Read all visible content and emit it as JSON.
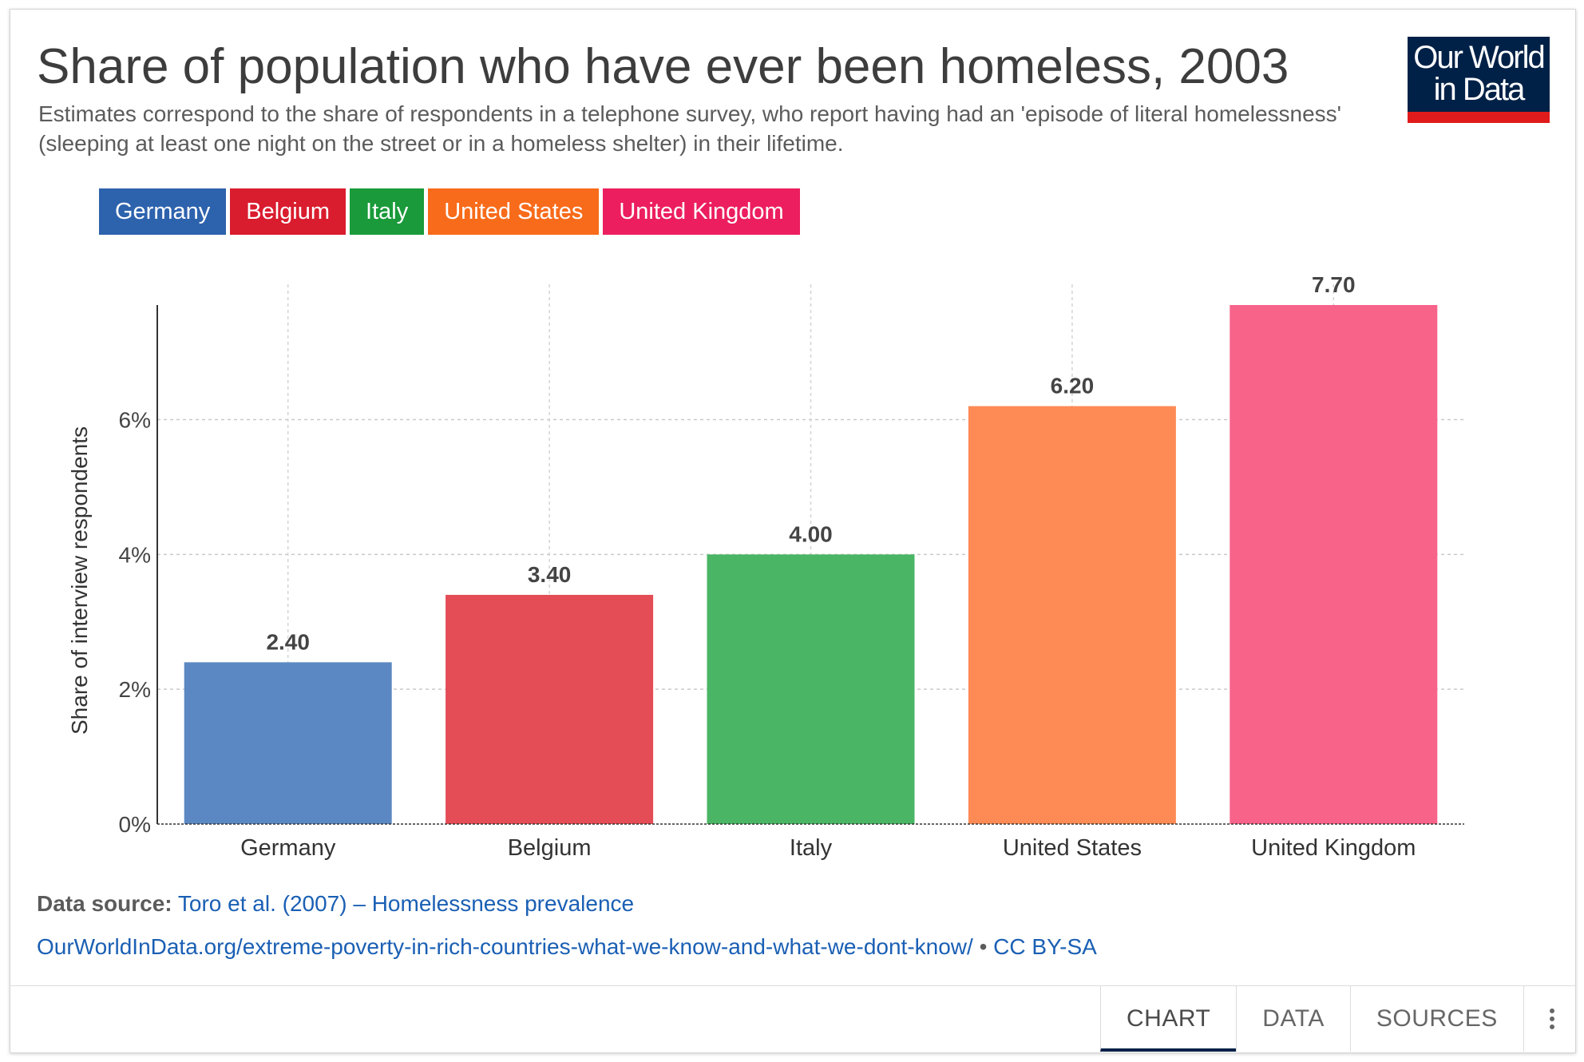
{
  "header": {
    "title": "Share of population who have ever been homeless, 2003",
    "subtitle": "Estimates correspond to the share of respondents in a telephone survey, who report having had an 'episode of literal homelessness' (sleeping at least one night on the street or in a homeless shelter) in their lifetime."
  },
  "logo": {
    "line1": "Our World",
    "line2": "in Data",
    "navy": "#002147",
    "red": "#e01b1b"
  },
  "legend": [
    {
      "label": "Germany",
      "color": "#2d62ad"
    },
    {
      "label": "Belgium",
      "color": "#d91c2e"
    },
    {
      "label": "Italy",
      "color": "#1a9a3a"
    },
    {
      "label": "United States",
      "color": "#f86b1a"
    },
    {
      "label": "United Kingdom",
      "color": "#ec1e5f"
    }
  ],
  "chart_data": {
    "type": "bar",
    "categories": [
      "Germany",
      "Belgium",
      "Italy",
      "United States",
      "United Kingdom"
    ],
    "values": [
      2.4,
      3.4,
      4.0,
      6.2,
      7.7
    ],
    "value_labels": [
      "2.40",
      "3.40",
      "4.00",
      "6.20",
      "7.70"
    ],
    "bar_colors": [
      "#5b88c2",
      "#e44c56",
      "#4ab564",
      "#fe8b55",
      "#f8638a"
    ],
    "ylabel": "Share of interview respondents",
    "yticks": [
      0,
      2,
      4,
      6
    ],
    "ytick_labels": [
      "0%",
      "2%",
      "4%",
      "6%"
    ],
    "ylim": [
      0,
      7.7
    ],
    "grid": "dashed"
  },
  "footer": {
    "source_label": "Data source:",
    "source_text": "Toro et al. (2007) – Homelessness prevalence",
    "url": "OurWorldInData.org/extreme-poverty-in-rich-countries-what-we-know-and-what-we-dont-know/",
    "separator": " • ",
    "license": "CC BY-SA"
  },
  "tabs": {
    "chart": "CHART",
    "data": "DATA",
    "sources": "SOURCES"
  }
}
